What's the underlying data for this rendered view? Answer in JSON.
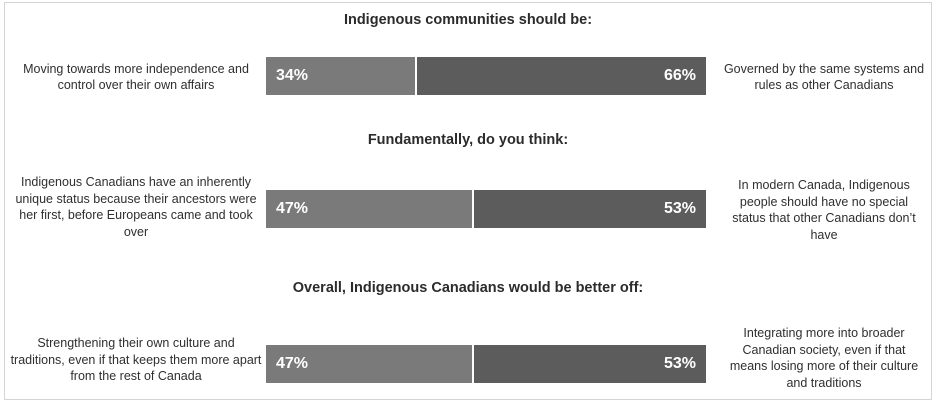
{
  "chart_data": [
    {
      "type": "bar",
      "orientation": "horizontal-stacked",
      "title": "Indigenous communities should be:",
      "left_label": "Moving towards more independence and control over their own affairs",
      "right_label": "Governed by the same systems and rules as other Canadians",
      "values": [
        34,
        66
      ],
      "value_labels": [
        "34%",
        "66%"
      ]
    },
    {
      "type": "bar",
      "orientation": "horizontal-stacked",
      "title": "Fundamentally, do you think:",
      "left_label": "Indigenous Canadians have an inherently unique status because their ancestors were her first, before Europeans came and took over",
      "right_label": "In modern Canada, Indigenous people should have no special status that other Canadians don’t have",
      "values": [
        47,
        53
      ],
      "value_labels": [
        "47%",
        "53%"
      ]
    },
    {
      "type": "bar",
      "orientation": "horizontal-stacked",
      "title": "Overall, Indigenous Canadians would be better off:",
      "left_label": "Strengthening their own culture and traditions, even if that keeps them more apart from the rest of Canada",
      "right_label": "Integrating more into broader Canadian society, even if that means losing more of their culture and traditions",
      "values": [
        47,
        53
      ],
      "value_labels": [
        "47%",
        "53%"
      ]
    }
  ],
  "colors": {
    "left_segment": "#7a7a7a",
    "right_segment": "#5c5c5c"
  }
}
